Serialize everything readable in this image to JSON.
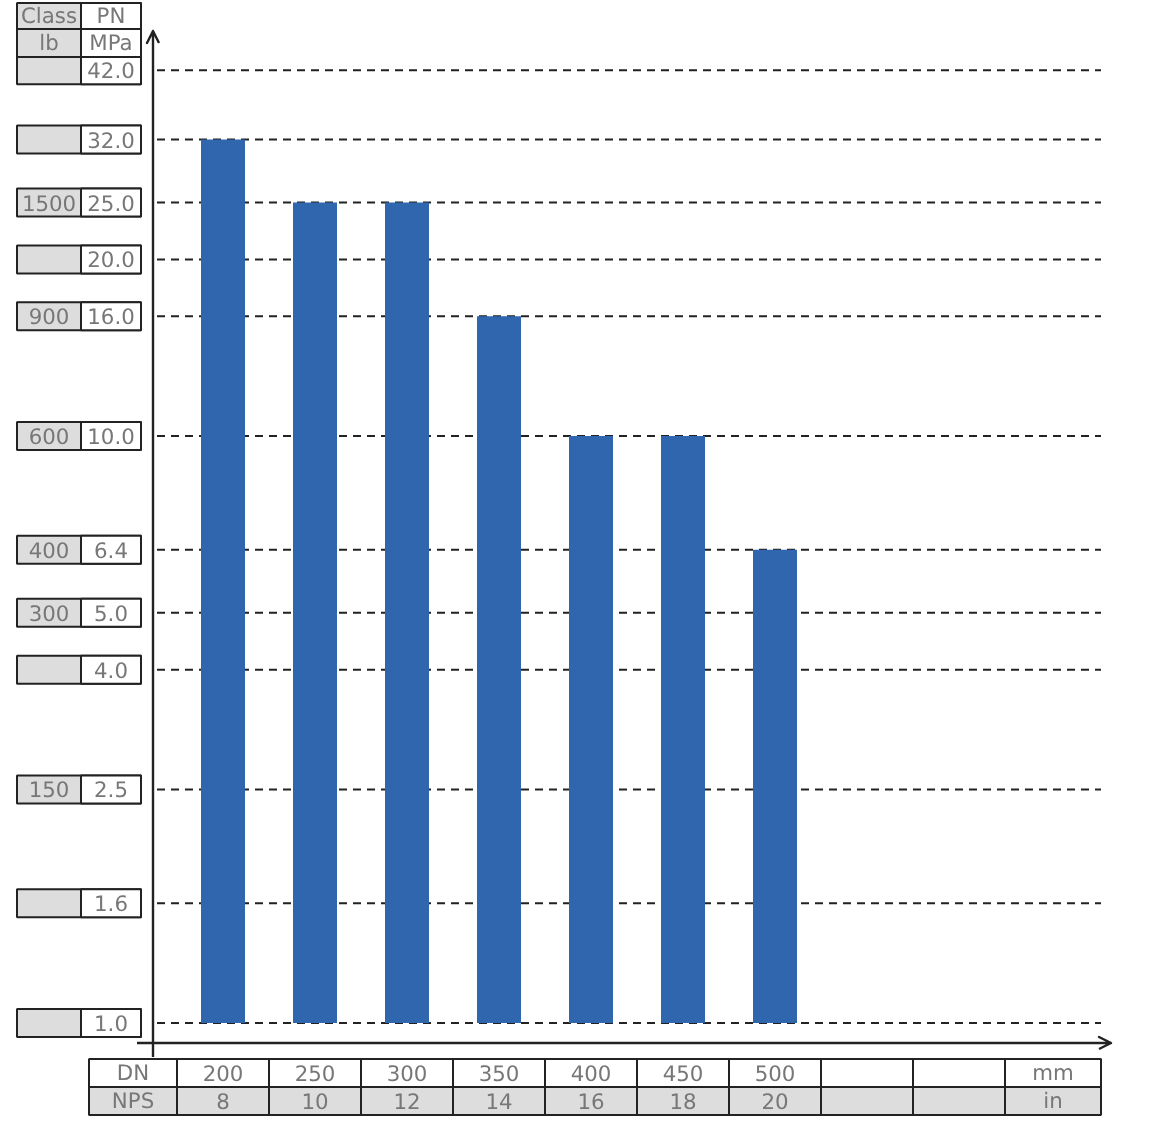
{
  "chart_data": {
    "type": "bar",
    "categories": [
      "200",
      "250",
      "300",
      "350",
      "400",
      "450",
      "500",
      null,
      null
    ],
    "values": [
      32.0,
      25.0,
      25.0,
      16.0,
      10.0,
      10.0,
      6.4,
      null,
      null
    ],
    "color": "#2f66ad",
    "log": true,
    "ylim": [
      1.0,
      49.0
    ],
    "yticks": [
      {
        "value": 1.0,
        "label": "1.0"
      },
      {
        "value": 1.6,
        "label": "1.6"
      },
      {
        "value": 2.5,
        "label": "2.5"
      },
      {
        "value": 4.0,
        "label": "4.0"
      },
      {
        "value": 5.0,
        "label": "5.0"
      },
      {
        "value": 6.4,
        "label": "6.4"
      },
      {
        "value": 10.0,
        "label": "10.0"
      },
      {
        "value": 16.0,
        "label": "16.0"
      },
      {
        "value": 20.0,
        "label": "20.0"
      },
      {
        "value": 25.0,
        "label": "25.0"
      },
      {
        "value": 32.0,
        "label": "32.0"
      },
      {
        "value": 42.0,
        "label": "42.0"
      }
    ],
    "grid": "y",
    "annotations": [
      "Class",
      "lb",
      "PN",
      "MPa",
      "DN",
      "NPS",
      "mm",
      "in",
      "8",
      "10",
      "12",
      "14",
      "16",
      "18",
      "20",
      null,
      null,
      "1500",
      null,
      "900",
      "600",
      "400",
      "300",
      null,
      "150",
      null,
      null
    ]
  }
}
